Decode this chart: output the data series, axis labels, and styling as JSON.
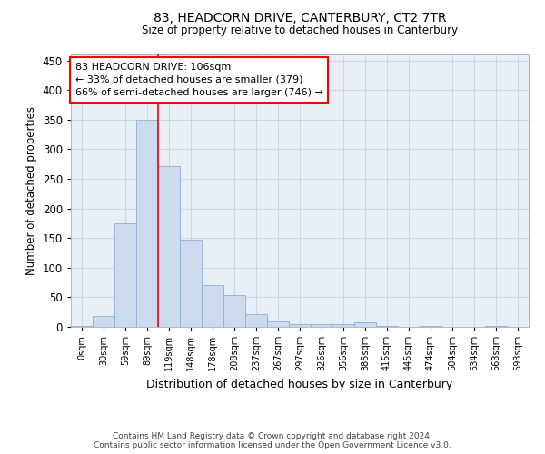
{
  "title": "83, HEADCORN DRIVE, CANTERBURY, CT2 7TR",
  "subtitle": "Size of property relative to detached houses in Canterbury",
  "xlabel": "Distribution of detached houses by size in Canterbury",
  "ylabel": "Number of detached properties",
  "bar_color": "#ccdcee",
  "bar_edge_color": "#8ab0d0",
  "grid_color": "#c5d3e0",
  "background_color": "#e8eef6",
  "property_line_x": 3,
  "annotation_line1": "83 HEADCORN DRIVE: 106sqm",
  "annotation_line2": "← 33% of detached houses are smaller (379)",
  "annotation_line3": "66% of semi-detached houses are larger (746) →",
  "annotation_box_color": "white",
  "annotation_box_edge": "red",
  "footnote1": "Contains HM Land Registry data © Crown copyright and database right 2024.",
  "footnote2": "Contains public sector information licensed under the Open Government Licence v3.0.",
  "categories": [
    "0sqm",
    "30sqm",
    "59sqm",
    "89sqm",
    "119sqm",
    "148sqm",
    "178sqm",
    "208sqm",
    "237sqm",
    "267sqm",
    "297sqm",
    "326sqm",
    "356sqm",
    "385sqm",
    "415sqm",
    "445sqm",
    "474sqm",
    "504sqm",
    "534sqm",
    "563sqm",
    "593sqm"
  ],
  "values": [
    2,
    18,
    175,
    350,
    272,
    147,
    70,
    54,
    21,
    9,
    5,
    5,
    5,
    7,
    2,
    0,
    2,
    0,
    0,
    2,
    0
  ],
  "ylim": [
    0,
    460
  ],
  "yticks": [
    0,
    50,
    100,
    150,
    200,
    250,
    300,
    350,
    400,
    450
  ],
  "red_line_bar_index": 3.5
}
